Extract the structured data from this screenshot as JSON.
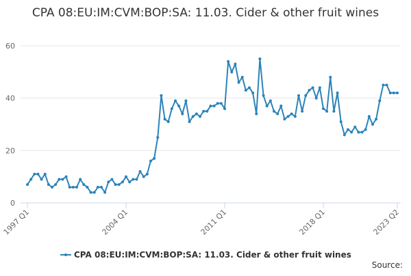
{
  "chart_data": {
    "type": "line",
    "title": "CPA 08:EU:IM:CVM:BOP:SA: 11.03. Cider & other fruit wines",
    "source": "Source:",
    "categories": [
      "1997 Q1",
      null,
      null,
      null,
      null,
      null,
      null,
      null,
      null,
      null,
      null,
      null,
      null,
      null,
      null,
      null,
      null,
      null,
      null,
      null,
      null,
      null,
      null,
      null,
      null,
      null,
      null,
      null,
      "2004 Q1",
      null,
      null,
      null,
      null,
      null,
      null,
      null,
      null,
      null,
      null,
      null,
      null,
      null,
      null,
      null,
      null,
      null,
      null,
      null,
      null,
      null,
      null,
      null,
      null,
      null,
      null,
      null,
      "2011 Q1",
      null,
      null,
      null,
      null,
      null,
      null,
      null,
      null,
      null,
      null,
      null,
      null,
      null,
      null,
      null,
      null,
      null,
      null,
      null,
      null,
      null,
      null,
      null,
      null,
      null,
      null,
      null,
      "2018 Q1",
      null,
      null,
      null,
      null,
      null,
      null,
      null,
      null,
      null,
      null,
      null,
      null,
      null,
      null,
      null,
      null,
      null,
      null,
      null,
      null,
      "2023 Q2"
    ],
    "series": [
      {
        "name": "CPA 08:EU:IM:CVM:BOP:SA: 11.03. Cider & other fruit wines",
        "color": "#2b83ba",
        "values": [
          7,
          9,
          11,
          11,
          9,
          11,
          7,
          6,
          7,
          9,
          9,
          10,
          6,
          6,
          6,
          9,
          7,
          6,
          4,
          4,
          6,
          6,
          4,
          8,
          9,
          7,
          7,
          8,
          10,
          8,
          9,
          9,
          12,
          10,
          11,
          16,
          17,
          25,
          41,
          32,
          31,
          36,
          39,
          37,
          34,
          39,
          31,
          33,
          34,
          33,
          35,
          35,
          37,
          37,
          38,
          38,
          36,
          54,
          50,
          53,
          46,
          48,
          43,
          44,
          42,
          34,
          55,
          41,
          37,
          39,
          35,
          34,
          37,
          32,
          33,
          34,
          33,
          41,
          35,
          41,
          43,
          44,
          40,
          44,
          36,
          35,
          48,
          35,
          42,
          31,
          26,
          28,
          27,
          29,
          27,
          27,
          28,
          33,
          30,
          32,
          39,
          45,
          45,
          42,
          42,
          42
        ]
      }
    ],
    "ylim": [
      0,
      60
    ],
    "yticks": [
      0,
      20,
      40,
      60
    ],
    "grid": true
  }
}
